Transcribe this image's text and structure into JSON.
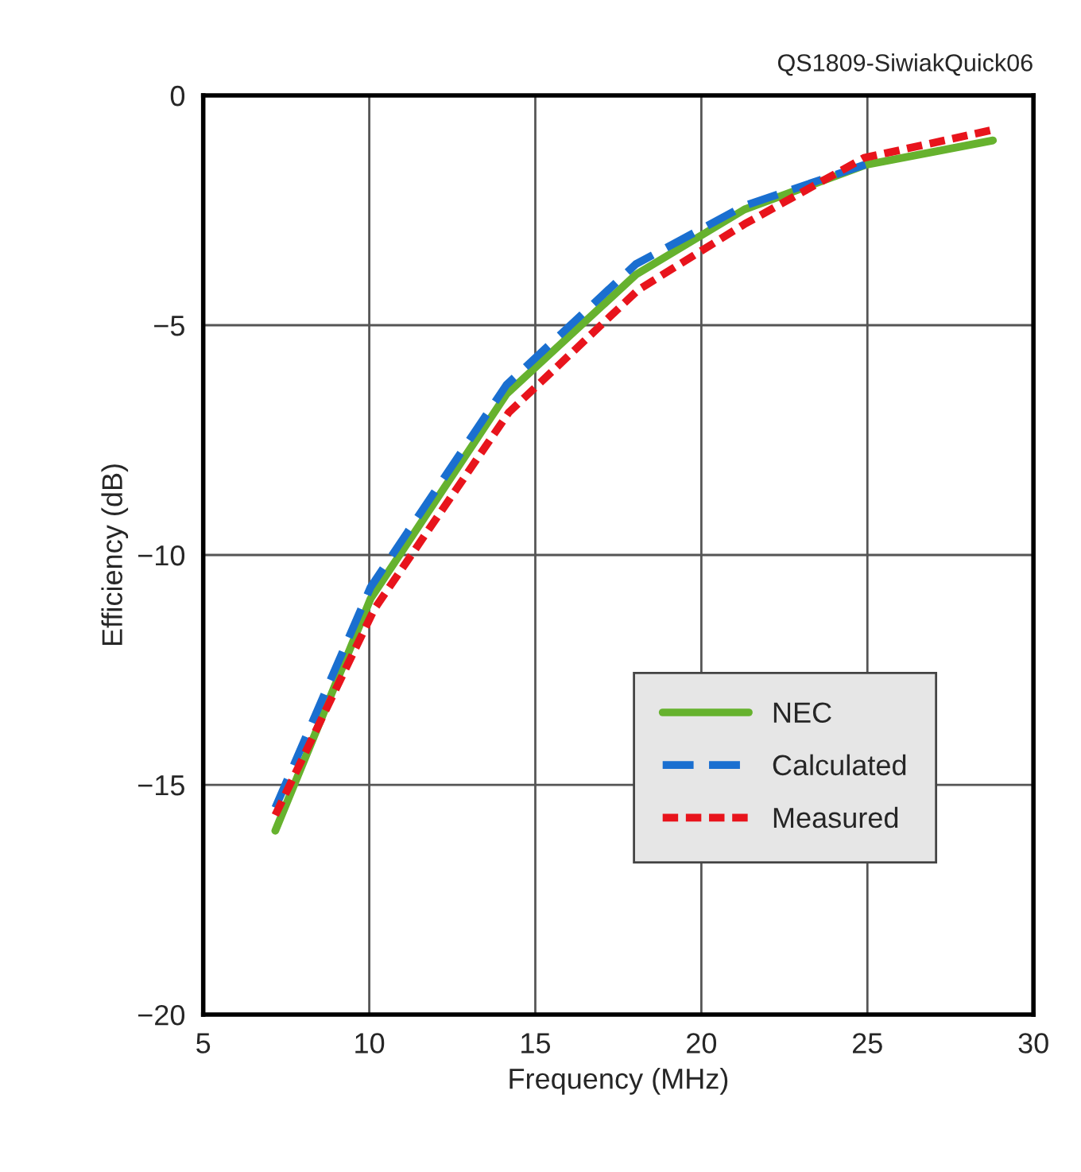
{
  "chart_data": {
    "type": "line",
    "xlabel": "Frequency (MHz)",
    "ylabel": "Efficiency (dB)",
    "annotations": [
      "QS1809-SiwiakQuick06"
    ],
    "series": [
      {
        "name": "NEC",
        "color": "#66b22e",
        "line_style": "solid",
        "x": [
          7.17,
          10.04,
          14.13,
          18.03,
          21.3,
          24.96,
          28.78
        ],
        "values": [
          -16.0,
          -10.95,
          -6.5,
          -3.9,
          -2.48,
          -1.51,
          -0.98
        ]
      },
      {
        "name": "Calculated",
        "color": "#1a6fd0",
        "line_style": "dashed",
        "x": [
          7.17,
          10.04,
          14.13,
          18.03,
          21.3,
          24.96
        ],
        "values": [
          -15.5,
          -10.7,
          -6.3,
          -3.67,
          -2.4,
          -1.5
        ]
      },
      {
        "name": "Measured",
        "color": "#e8141c",
        "line_style": "dotted",
        "x": [
          7.17,
          10.15,
          14.2,
          18.1,
          21.3,
          24.9,
          28.78
        ],
        "values": [
          -15.66,
          -11.18,
          -6.9,
          -4.23,
          -2.8,
          -1.36,
          -0.75
        ]
      }
    ],
    "xlim": [
      5,
      30
    ],
    "ylim": [
      -20,
      0
    ],
    "xticks": [
      5,
      10,
      15,
      20,
      25,
      30
    ],
    "yticks": [
      {
        "value": -20,
        "label": "−20"
      },
      {
        "value": -15,
        "label": "−15"
      },
      {
        "value": -10,
        "label": "−10"
      },
      {
        "value": -5,
        "label": "−5"
      },
      0
    ],
    "grid": true,
    "legend": "bottom right"
  }
}
